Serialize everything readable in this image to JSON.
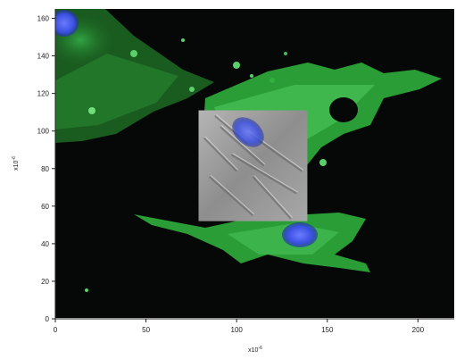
{
  "chart_data": {
    "type": "image",
    "xlim": [
      0,
      220
    ],
    "ylim": [
      0,
      165
    ],
    "x_ticks": [
      0,
      50,
      100,
      150,
      200
    ],
    "y_ticks": [
      0,
      20,
      40,
      60,
      80,
      100,
      120,
      140,
      160
    ],
    "x_tick_labels": [
      "0",
      "50",
      "100",
      "150",
      "200"
    ],
    "y_tick_labels": [
      "0",
      "20",
      "40",
      "60",
      "80",
      "100",
      "120",
      "140",
      "160"
    ],
    "xlabel": "x10",
    "xlabel_exp": "-6",
    "ylabel": "x10",
    "ylabel_exp": "-6",
    "grid": false,
    "inset": {
      "x_range": [
        79,
        139
      ],
      "y_range": [
        52,
        111
      ]
    },
    "colors": {
      "background": "#050806",
      "cytoskeleton": "#33c94a",
      "nucleus": "#3a4fe0",
      "dic_gray": "#9a9a9a"
    }
  }
}
